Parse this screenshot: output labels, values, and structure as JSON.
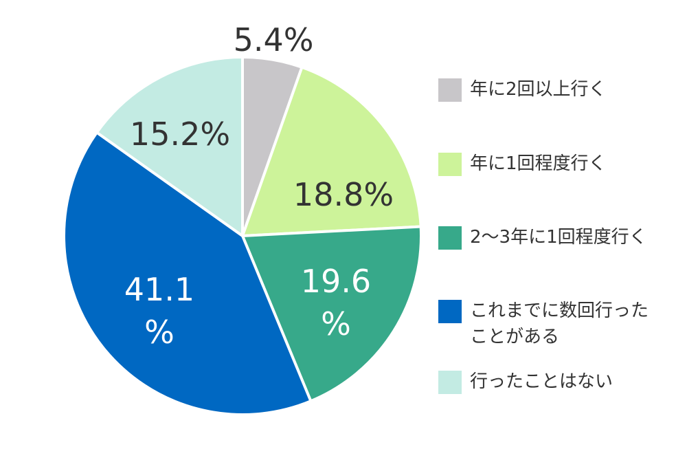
{
  "chart_data": {
    "type": "pie",
    "title": "",
    "unit": "%",
    "start_angle_deg": 0,
    "direction": "clockwise",
    "legend_position": "right",
    "categories": [
      "年に2回以上行く",
      "年に1回程度行く",
      "2～3年に1回程度行く",
      "これまでに数回行ったことがある",
      "行ったことはない"
    ],
    "values": [
      5.4,
      18.8,
      19.6,
      41.1,
      15.2
    ],
    "value_labels": [
      "5.4%",
      "18.8%",
      "19.6\n%",
      "41.1\n%",
      "15.2%"
    ],
    "colors": [
      "#c8c6c9",
      "#cdf39a",
      "#37a98a",
      "#0068c2",
      "#c3ebe3"
    ],
    "label_colors": [
      "#333333",
      "#333333",
      "#ffffff",
      "#ffffff",
      "#333333"
    ]
  }
}
